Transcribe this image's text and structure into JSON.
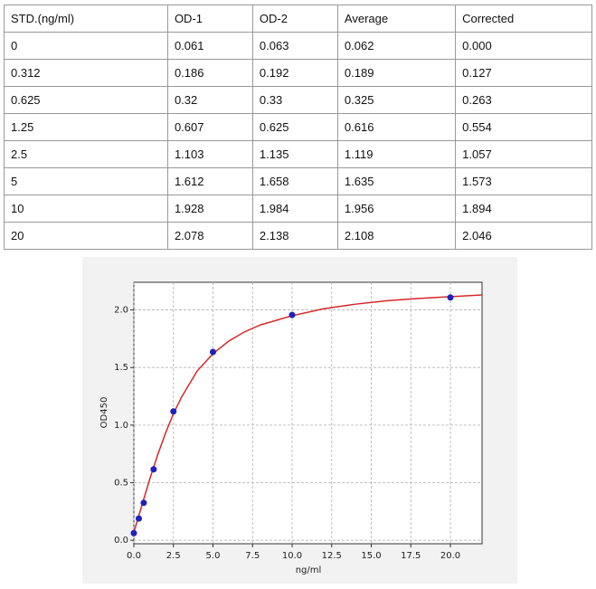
{
  "table": {
    "header": [
      "STD.(ng/ml)",
      "OD-1",
      "OD-2",
      "Average",
      "Corrected"
    ],
    "rows": [
      [
        "0",
        "0.061",
        "0.063",
        "0.062",
        "0.000"
      ],
      [
        "0.312",
        "0.186",
        "0.192",
        "0.189",
        "0.127"
      ],
      [
        "0.625",
        "0.32",
        "0.33",
        "0.325",
        "0.263"
      ],
      [
        "1.25",
        "0.607",
        "0.625",
        "0.616",
        "0.554"
      ],
      [
        "2.5",
        "1.103",
        "1.135",
        "1.119",
        "1.057"
      ],
      [
        "5",
        "1.612",
        "1.658",
        "1.635",
        "1.573"
      ],
      [
        "10",
        "1.928",
        "1.984",
        "1.956",
        "1.894"
      ],
      [
        "20",
        "2.078",
        "2.138",
        "2.108",
        "2.046"
      ]
    ]
  },
  "chart_data": {
    "type": "scatter",
    "xlabel": "ng/ml",
    "ylabel": "OD450",
    "xlim": [
      0,
      22
    ],
    "ylim": [
      -0.03,
      2.24
    ],
    "grid": true,
    "xticks": [
      {
        "value": 0,
        "label": "0.0"
      },
      {
        "value": 2.5,
        "label": "2.5"
      },
      {
        "value": 5,
        "label": "5.0"
      },
      {
        "value": 7.5,
        "label": "7.5"
      },
      {
        "value": 10,
        "label": "10.0"
      },
      {
        "value": 12.5,
        "label": "12.5"
      },
      {
        "value": 15,
        "label": "15.0"
      },
      {
        "value": 17.5,
        "label": "17.5"
      },
      {
        "value": 20,
        "label": "20.0"
      }
    ],
    "yticks": [
      {
        "value": 0,
        "label": "0.0"
      },
      {
        "value": 0.5,
        "label": "0.5"
      },
      {
        "value": 1,
        "label": "1.0"
      },
      {
        "value": 1.5,
        "label": "1.5"
      },
      {
        "value": 2,
        "label": "2.0"
      }
    ],
    "points": {
      "color": "#2020c0",
      "x": [
        0,
        0.312,
        0.625,
        1.25,
        2.5,
        5,
        10,
        20
      ],
      "y": [
        0.062,
        0.189,
        0.325,
        0.616,
        1.119,
        1.635,
        1.956,
        2.108
      ]
    },
    "curve": {
      "color": "#d62728",
      "x": [
        0,
        0.5,
        1,
        1.5,
        2,
        2.5,
        3,
        4,
        5,
        6,
        7,
        8,
        10,
        12,
        14,
        16,
        18,
        20,
        22
      ],
      "y": [
        0.07,
        0.3,
        0.53,
        0.74,
        0.93,
        1.1,
        1.24,
        1.47,
        1.62,
        1.73,
        1.81,
        1.87,
        1.95,
        2.01,
        2.05,
        2.08,
        2.1,
        2.115,
        2.13
      ]
    }
  }
}
